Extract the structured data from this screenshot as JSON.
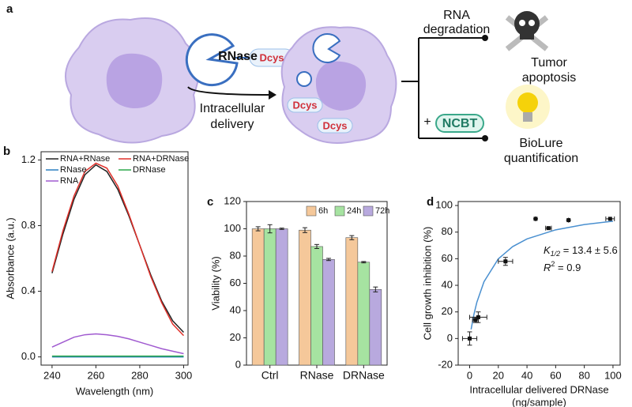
{
  "schematic": {
    "panel_label": "a",
    "enzyme": "RNase",
    "tag": "Dcys",
    "arrow_label": [
      "Intracellular",
      "delivery"
    ],
    "cell_tags": [
      "Dcys",
      "Dcys"
    ],
    "branch_top": [
      "RNA",
      "degradation"
    ],
    "outcome_top": [
      "Tumor",
      "apoptosis"
    ],
    "plus": "+",
    "probe": "NCBT",
    "outcome_bottom": [
      "BioLure",
      "quantification"
    ]
  },
  "chart_data": [
    {
      "type": "line",
      "panel_label": "b",
      "xlabel": "Wavelength (nm)",
      "ylabel": "Absorbance (a.u.)",
      "x": [
        240,
        245,
        250,
        255,
        260,
        265,
        270,
        275,
        280,
        285,
        290,
        295,
        300
      ],
      "series": [
        {
          "name": "RNA+RNase",
          "color": "#222222",
          "values": [
            0.51,
            0.75,
            0.96,
            1.11,
            1.17,
            1.13,
            1.02,
            0.86,
            0.68,
            0.5,
            0.34,
            0.22,
            0.15
          ]
        },
        {
          "name": "RNA+DRNase",
          "color": "#e0302a",
          "values": [
            0.52,
            0.77,
            0.98,
            1.13,
            1.18,
            1.15,
            1.04,
            0.87,
            0.68,
            0.49,
            0.33,
            0.2,
            0.13
          ]
        },
        {
          "name": "RNase",
          "color": "#2a7fc0",
          "values": [
            0.0,
            0.0,
            0.0,
            0.0,
            0.0,
            0.0,
            0.0,
            0.0,
            0.0,
            0.0,
            0.0,
            0.0,
            0.0
          ]
        },
        {
          "name": "DRNase",
          "color": "#2ca84a",
          "values": [
            0.005,
            0.005,
            0.005,
            0.005,
            0.005,
            0.005,
            0.005,
            0.005,
            0.005,
            0.005,
            0.005,
            0.005,
            0.005
          ]
        },
        {
          "name": "RNA",
          "color": "#a05ad0",
          "values": [
            0.06,
            0.09,
            0.12,
            0.135,
            0.14,
            0.135,
            0.125,
            0.11,
            0.09,
            0.07,
            0.05,
            0.035,
            0.02
          ]
        }
      ],
      "xlim": [
        235,
        302
      ],
      "xticks": [
        240,
        260,
        280,
        300
      ],
      "ylim": [
        -0.05,
        1.25
      ],
      "yticks": [
        {
          "value": 0,
          "label": "0.0"
        },
        0.4,
        0.8,
        1.2
      ]
    },
    {
      "type": "bar",
      "panel_label": "c",
      "ylabel": "Viability (%)",
      "categories": [
        "Ctrl",
        "RNase",
        "DRNase"
      ],
      "series": [
        {
          "name": "6h",
          "color": "#f5c89a",
          "values": [
            100,
            99,
            93.5
          ],
          "errors": [
            1.5,
            1.8,
            1.5
          ]
        },
        {
          "name": "24h",
          "color": "#a6e3a1",
          "values": [
            100,
            87,
            75.5
          ],
          "errors": [
            3,
            1.5,
            0.5
          ]
        },
        {
          "name": "72h",
          "color": "#b8a9de",
          "values": [
            100,
            77.5,
            55.5
          ],
          "errors": [
            0.5,
            0.8,
            1.8
          ]
        }
      ],
      "ylim": [
        0,
        120
      ],
      "yticks": [
        0,
        20,
        40,
        60,
        80,
        100,
        120
      ]
    },
    {
      "type": "scatter",
      "panel_label": "d",
      "xlabel": [
        "Intracellular delivered DRNase",
        "(ng/sample)"
      ],
      "ylabel": "Cell growth inhibition (%)",
      "points": {
        "color": "#111111",
        "x": [
          0,
          4,
          6,
          25,
          46,
          55,
          69,
          98
        ],
        "values": [
          0,
          14,
          16,
          58,
          90,
          83,
          89,
          90
        ],
        "xerr": [
          5,
          2,
          6,
          5,
          0,
          2,
          0,
          3
        ],
        "yerr": [
          5,
          2,
          4,
          3,
          0,
          0,
          0,
          0
        ]
      },
      "fit": {
        "color": "#4a90d0",
        "x": [
          1,
          3,
          5,
          10,
          20,
          30,
          40,
          60,
          80,
          100
        ],
        "values": [
          6.9,
          18.3,
          27.2,
          42.7,
          59.9,
          69.1,
          74.9,
          81.7,
          85.7,
          88.2
        ]
      },
      "k_half": {
        "symbol": "K",
        "subscript": "1/2",
        "text": " = 13.4 ± 5.6"
      },
      "r_squared": {
        "symbol": "R",
        "superscript": "2",
        "text": " =  0.9"
      },
      "xlim": [
        -8,
        105
      ],
      "xticks": [
        0,
        20,
        40,
        60,
        80,
        100
      ],
      "ylim": [
        -20,
        103
      ],
      "yticks": [
        -20,
        0,
        20,
        40,
        60,
        80,
        100
      ]
    }
  ]
}
